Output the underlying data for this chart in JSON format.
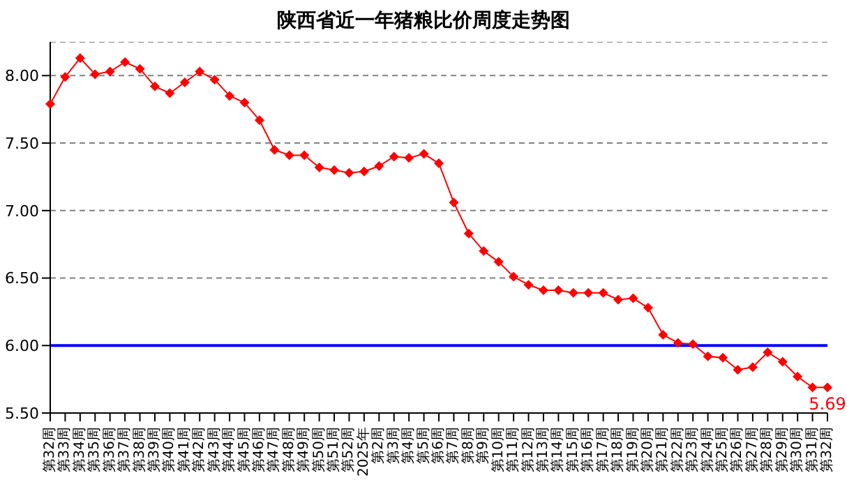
{
  "chart_data": {
    "type": "line",
    "title": "陕西省近一年猪粮比价周度走势图",
    "categories": [
      "第32周",
      "第33周",
      "第34周",
      "第35周",
      "第36周",
      "第37周",
      "第38周",
      "第39周",
      "第40周",
      "第41周",
      "第42周",
      "第43周",
      "第44周",
      "第45周",
      "第46周",
      "第47周",
      "第48周",
      "第49周",
      "第50周",
      "第51周",
      "第52周",
      "2025年",
      "第2周",
      "第3周",
      "第4周",
      "第5周",
      "第6周",
      "第7周",
      "第8周",
      "第9周",
      "第10周",
      "第11周",
      "第12周",
      "第13周",
      "第14周",
      "第15周",
      "第16周",
      "第17周",
      "第18周",
      "第19周",
      "第20周",
      "第21周",
      "第22周",
      "第23周",
      "第24周",
      "第25周",
      "第26周",
      "第27周",
      "第28周",
      "第29周",
      "第30周",
      "第31周",
      "第32周"
    ],
    "series": [
      {
        "color": "#ff0000",
        "values": [
          7.79,
          7.99,
          8.13,
          8.01,
          8.03,
          8.1,
          8.05,
          7.92,
          7.87,
          7.95,
          8.03,
          7.97,
          7.85,
          7.8,
          7.67,
          7.45,
          7.41,
          7.41,
          7.32,
          7.3,
          7.28,
          7.29,
          7.33,
          7.4,
          7.39,
          7.42,
          7.35,
          7.06,
          6.83,
          6.7,
          6.62,
          6.51,
          6.45,
          6.41,
          6.41,
          6.39,
          6.39,
          6.39,
          6.34,
          6.35,
          6.28,
          6.08,
          6.02,
          6.01,
          5.92,
          5.91,
          5.82,
          5.84,
          5.95,
          5.88,
          5.77,
          5.69,
          5.69
        ],
        "value_labels": [
          null,
          null,
          null,
          null,
          null,
          null,
          null,
          null,
          null,
          null,
          null,
          null,
          null,
          null,
          null,
          null,
          null,
          null,
          null,
          null,
          null,
          null,
          null,
          null,
          null,
          null,
          null,
          null,
          null,
          null,
          null,
          null,
          null,
          null,
          null,
          null,
          null,
          null,
          null,
          null,
          null,
          null,
          null,
          null,
          null,
          null,
          null,
          null,
          null,
          null,
          null,
          null,
          "5.69"
        ]
      }
    ],
    "ylim": [
      5.5,
      8.25
    ],
    "yticks": [
      {
        "value": 5.5,
        "label": "5.50"
      },
      {
        "value": 6,
        "label": "6.00"
      },
      {
        "value": 6.5,
        "label": "6.50"
      },
      {
        "value": 7,
        "label": "7.00"
      },
      {
        "value": 7.5,
        "label": "7.50"
      },
      {
        "value": 8,
        "label": "8.00"
      }
    ],
    "ref_lines": [
      {
        "axis": "y",
        "value": 6,
        "color": "#0000ff"
      }
    ],
    "grid": "y",
    "marker": "diamond",
    "line_style": "solid"
  }
}
